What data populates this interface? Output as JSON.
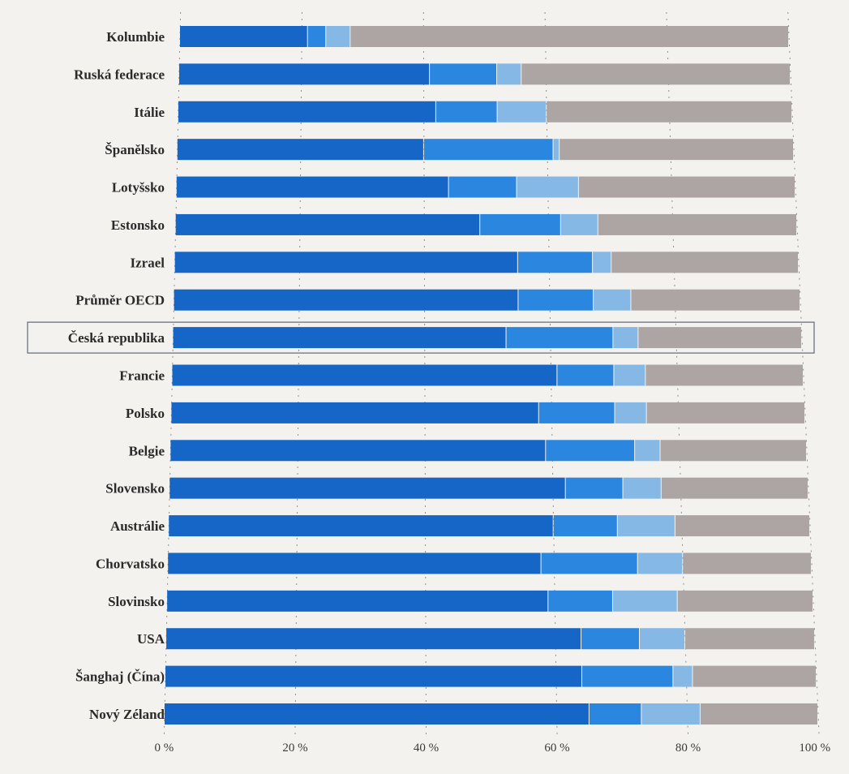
{
  "chart_data": {
    "type": "bar",
    "orientation": "horizontal",
    "stacked": true,
    "categories": [
      "Kolumbie",
      "Ruská federace",
      "Itálie",
      "Španělsko",
      "Lotyšsko",
      "Estonsko",
      "Izrael",
      "Průměr OECD",
      "Česká republika",
      "Francie",
      "Polsko",
      "Belgie",
      "Slovensko",
      "Austrálie",
      "Chorvatsko",
      "Slovinsko",
      "USA",
      "Šanghaj (Čína)",
      "Nový Zéland"
    ],
    "series": [
      {
        "color": "#1566c6",
        "values": [
          21,
          41,
          42,
          40,
          44,
          49,
          55,
          55,
          53,
          61,
          58,
          59,
          62,
          60,
          58,
          59,
          64,
          64,
          65
        ]
      },
      {
        "color": "#2a86df",
        "values": [
          3,
          11,
          10,
          21,
          11,
          13,
          12,
          12,
          17,
          9,
          12,
          14,
          9,
          10,
          15,
          10,
          9,
          14,
          8
        ]
      },
      {
        "color": "#86b8e6",
        "values": [
          4,
          4,
          8,
          1,
          10,
          6,
          3,
          6,
          4,
          5,
          5,
          4,
          6,
          9,
          7,
          10,
          7,
          3,
          9
        ]
      },
      {
        "color": "#aca5a4",
        "values": [
          72,
          44,
          40,
          38,
          35,
          32,
          30,
          27,
          26,
          25,
          25,
          23,
          23,
          21,
          20,
          21,
          20,
          19,
          18
        ]
      }
    ],
    "xlim": [
      0,
      100
    ],
    "x_ticks": [
      "0 %",
      "20 %",
      "40 %",
      "60 %",
      "80 %",
      "100 %"
    ],
    "x_tick_values": [
      0,
      20,
      40,
      60,
      80,
      100
    ],
    "highlight_category": "Česká republika",
    "grid": true,
    "legend": "none",
    "title": "",
    "xlabel": "",
    "ylabel": ""
  }
}
